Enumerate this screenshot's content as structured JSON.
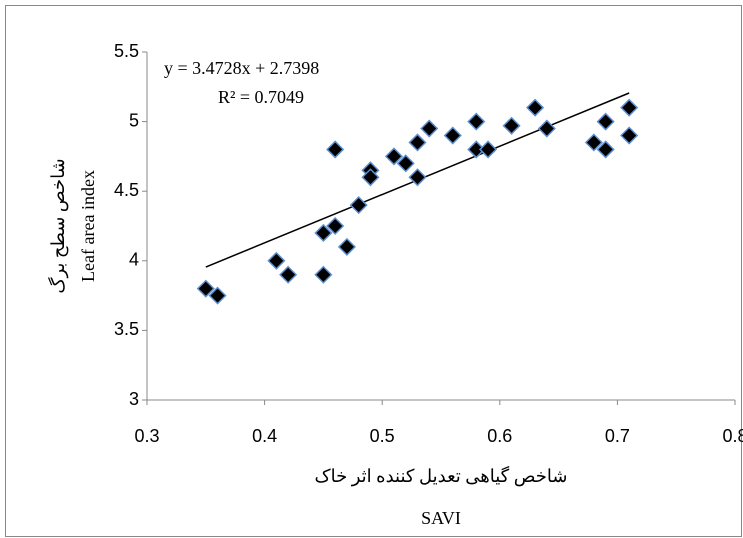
{
  "chart_data": {
    "type": "scatter",
    "x_label": [
      "شاخص گیاهی تعدیل کننده اثر خاک",
      "SAVI"
    ],
    "y_label": [
      "شاخص سطح برگ",
      "Leaf area index"
    ],
    "series": [
      {
        "color": "#000000",
        "x": [
          0.35,
          0.36,
          0.41,
          0.42,
          0.45,
          0.45,
          0.46,
          0.46,
          0.47,
          0.48,
          0.49,
          0.49,
          0.51,
          0.52,
          0.53,
          0.53,
          0.54,
          0.56,
          0.58,
          0.58,
          0.59,
          0.61,
          0.63,
          0.64,
          0.68,
          0.69,
          0.69,
          0.71,
          0.71
        ],
        "values": [
          3.8,
          3.75,
          4.0,
          3.9,
          4.2,
          3.9,
          4.8,
          4.25,
          4.1,
          4.4,
          4.65,
          4.6,
          4.75,
          4.7,
          4.85,
          4.6,
          4.95,
          4.9,
          5.0,
          4.8,
          4.8,
          4.97,
          5.1,
          4.95,
          4.85,
          5.0,
          4.8,
          5.1,
          4.9
        ]
      }
    ],
    "trendline": {
      "slope": 3.4728,
      "intercept": 2.7398,
      "equation": "y = 3.4728x  + 2.7398",
      "r_squared": "R² = 0.7049"
    },
    "xlim": [
      0.3,
      0.8
    ],
    "xticks": [
      0.3,
      0.4,
      0.5,
      0.6,
      0.7,
      0.8
    ],
    "ylim": [
      3,
      5.5
    ],
    "yticks": [
      3,
      3.5,
      4,
      4.5,
      5,
      5.5
    ],
    "grid": false
  }
}
